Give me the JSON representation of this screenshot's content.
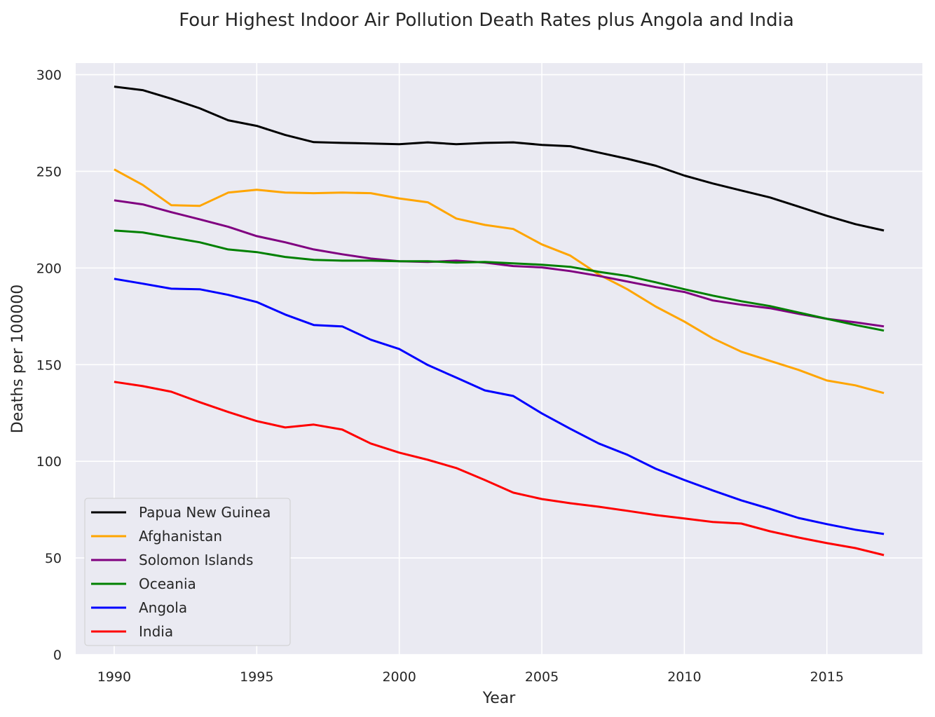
{
  "chart_data": {
    "type": "line",
    "title": "Four Highest Indoor Air Pollution Death Rates plus Angola and India",
    "xlabel": "Year",
    "ylabel": "Deaths per 100000",
    "xlim": [
      1988.65,
      2018.35
    ],
    "ylim": [
      0,
      306
    ],
    "xticks": [
      1990,
      1995,
      2000,
      2005,
      2010,
      2015
    ],
    "yticks": [
      0,
      50,
      100,
      150,
      200,
      250,
      300
    ],
    "grid": true,
    "legend_position": "lower-left",
    "x": [
      1990,
      1991,
      1992,
      1993,
      1994,
      1995,
      1996,
      1997,
      1998,
      1999,
      2000,
      2001,
      2002,
      2003,
      2004,
      2005,
      2006,
      2007,
      2008,
      2009,
      2010,
      2011,
      2012,
      2013,
      2014,
      2015,
      2016,
      2017
    ],
    "series": [
      {
        "name": "Papua New Guinea",
        "color": "#000000",
        "values": [
          293.8,
          292,
          287.6,
          282.6,
          276.4,
          273.5,
          268.8,
          265.1,
          264.7,
          264.4,
          264,
          265,
          264,
          264.7,
          265,
          263.7,
          263,
          259.7,
          256.5,
          252.9,
          247.8,
          243.7,
          240.1,
          236.5,
          231.8,
          227,
          222.7,
          219.4
        ]
      },
      {
        "name": "Afghanistan",
        "color": "#ffa500",
        "values": [
          251,
          243,
          232.5,
          232.1,
          239,
          240.5,
          239,
          238.7,
          239,
          238.7,
          236,
          234,
          225.6,
          222.3,
          220.2,
          212.2,
          206.4,
          196.6,
          189,
          180,
          172.3,
          163.6,
          156.7,
          152,
          147.3,
          141.8,
          139.3,
          135.3
        ]
      },
      {
        "name": "Solomon Islands",
        "color": "#800080",
        "values": [
          235,
          232.9,
          228.9,
          225.2,
          221.3,
          216.5,
          213.3,
          209.6,
          207.1,
          204.9,
          203.5,
          203.1,
          203.8,
          202.8,
          201,
          200.3,
          198.4,
          195.9,
          193,
          190.1,
          187.6,
          183.2,
          181,
          179.2,
          176.3,
          173.7,
          171.9,
          169.8
        ]
      },
      {
        "name": "Oceania",
        "color": "#008000",
        "values": [
          219.4,
          218.4,
          215.8,
          213.3,
          209.6,
          208.2,
          205.7,
          204.2,
          203.8,
          203.8,
          203.5,
          203.5,
          202.8,
          203.1,
          202.4,
          201.7,
          200.6,
          198,
          195.9,
          192.6,
          189,
          185.7,
          182.8,
          180.3,
          177,
          173.7,
          170.5,
          167.6
        ]
      },
      {
        "name": "Angola",
        "color": "#0000ff",
        "values": [
          194.4,
          191.9,
          189.3,
          189,
          186.1,
          182.4,
          175.9,
          170.5,
          169.8,
          162.9,
          158.1,
          149.8,
          143.3,
          136.7,
          133.8,
          124.8,
          116.8,
          109.2,
          103.4,
          96.1,
          90.3,
          84.9,
          79.8,
          75.4,
          70.7,
          67.5,
          64.6,
          62.4
        ]
      },
      {
        "name": "India",
        "color": "#ff0000",
        "values": [
          141.1,
          138.9,
          136,
          130.6,
          125.5,
          120.8,
          117.5,
          119,
          116.4,
          109.2,
          104.5,
          100.8,
          96.5,
          90.3,
          83.8,
          80.5,
          78.3,
          76.5,
          74.4,
          72.2,
          70.4,
          68.6,
          67.8,
          63.8,
          60.6,
          57.7,
          55.1,
          51.5
        ]
      }
    ]
  }
}
